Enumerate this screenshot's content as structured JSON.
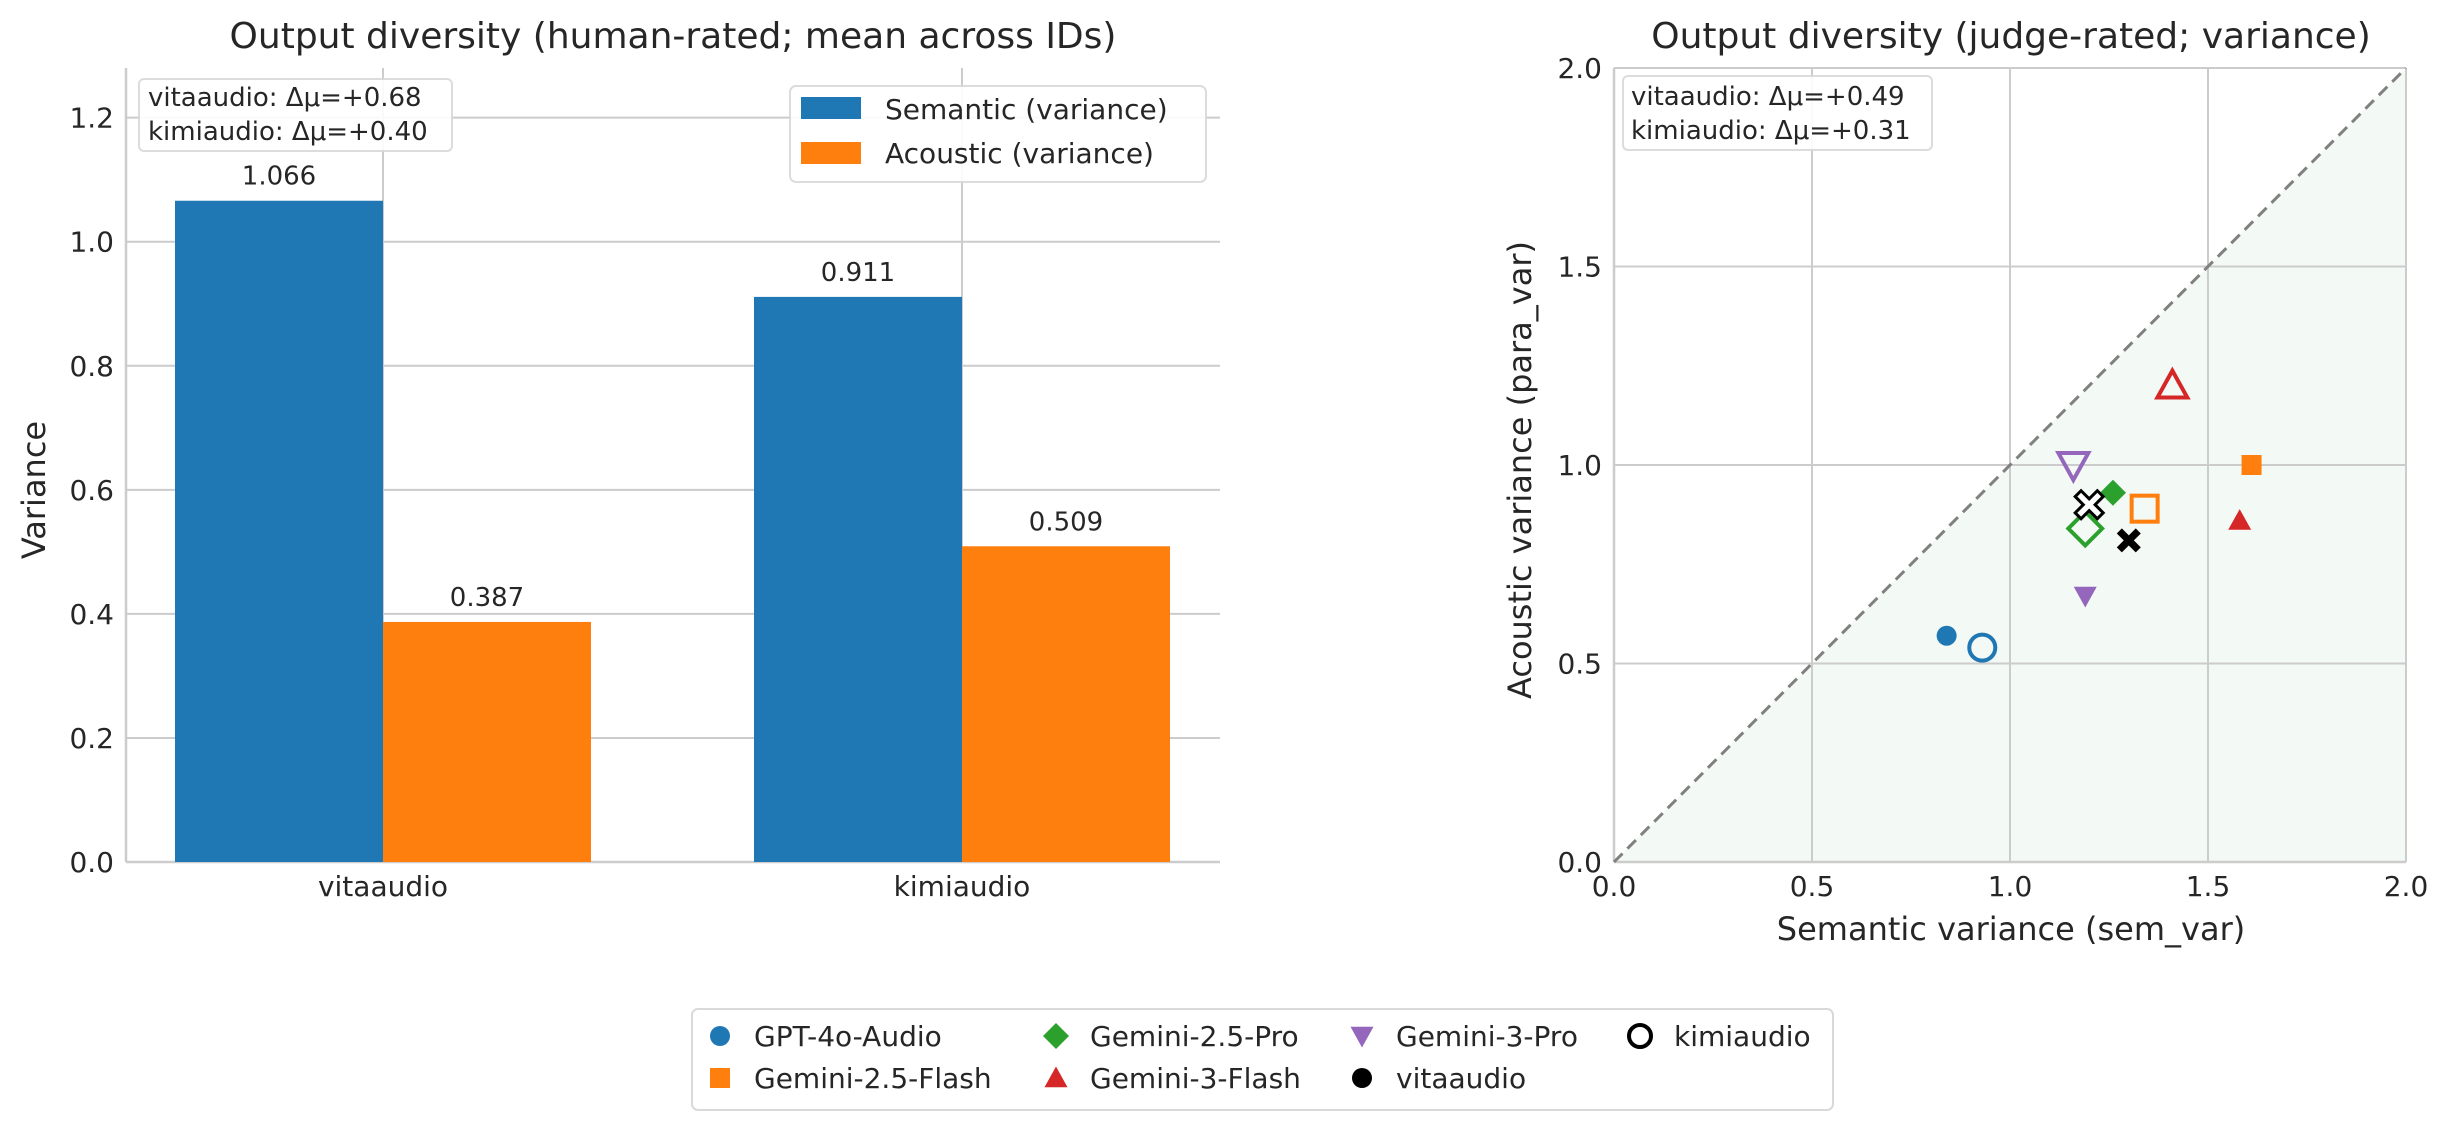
{
  "colors": {
    "semantic": "#1f77b4",
    "acoustic": "#ff7f0e",
    "GPT-4o-Audio": "#1f77b4",
    "Gemini-2.5-Flash": "#ff7f0e",
    "Gemini-2.5-Pro": "#2ca02c",
    "Gemini-3-Flash": "#d62728",
    "Gemini-3-Pro": "#9467bd",
    "black": "#000000",
    "grid": "#cccccc",
    "shade": "#f3f9f4"
  },
  "chart_data": [
    {
      "type": "bar",
      "title": "Output diversity (human-rated; mean across IDs)",
      "xlabel": "",
      "ylabel": "Variance",
      "ylim": [
        0,
        1.28
      ],
      "yticks": [
        "0.0",
        "0.2",
        "0.4",
        "0.6",
        "0.8",
        "1.0",
        "1.2"
      ],
      "categories": [
        "vitaaudio",
        "kimiaudio"
      ],
      "series": [
        {
          "name": "Semantic (variance)",
          "values": [
            1.066,
            0.911
          ],
          "labels": [
            "1.066",
            "0.911"
          ]
        },
        {
          "name": "Acoustic (variance)",
          "values": [
            0.387,
            0.509
          ],
          "labels": [
            "0.387",
            "0.509"
          ]
        }
      ],
      "annotation": [
        "vitaaudio: Δμ=+0.68",
        "kimiaudio: Δμ=+0.40"
      ],
      "grid": true,
      "legend_position": "top-right"
    },
    {
      "type": "scatter",
      "title": "Output diversity (judge-rated; variance)",
      "xlabel": "Semantic variance (sem_var)",
      "ylabel": "Acoustic variance (para_var)",
      "xlim": [
        0,
        2.0
      ],
      "ylim": [
        0,
        2.0
      ],
      "xticks": [
        "0.0",
        "0.5",
        "1.0",
        "1.5",
        "2.0"
      ],
      "yticks": [
        "0.0",
        "0.5",
        "1.0",
        "1.5",
        "2.0"
      ],
      "diagonal": "y = x (dashed), region below shaded",
      "grid": true,
      "annotation": [
        "vitaaudio: Δμ=+0.49",
        "kimiaudio: Δμ=+0.31"
      ],
      "points": [
        {
          "model": "GPT-4o-Audio",
          "system": "vitaaudio",
          "x": 0.84,
          "y": 0.57
        },
        {
          "model": "GPT-4o-Audio",
          "system": "kimiaudio",
          "x": 0.93,
          "y": 0.54
        },
        {
          "model": "Gemini-2.5-Flash",
          "system": "vitaaudio",
          "x": 1.61,
          "y": 1.0
        },
        {
          "model": "Gemini-2.5-Flash",
          "system": "kimiaudio",
          "x": 1.34,
          "y": 0.89
        },
        {
          "model": "Gemini-2.5-Pro",
          "system": "vitaaudio",
          "x": 1.26,
          "y": 0.93
        },
        {
          "model": "Gemini-2.5-Pro",
          "system": "kimiaudio",
          "x": 1.19,
          "y": 0.84
        },
        {
          "model": "Gemini-3-Flash",
          "system": "vitaaudio",
          "x": 1.58,
          "y": 0.86
        },
        {
          "model": "Gemini-3-Flash",
          "system": "kimiaudio",
          "x": 1.41,
          "y": 1.2
        },
        {
          "model": "Gemini-3-Pro",
          "system": "vitaaudio",
          "x": 1.19,
          "y": 0.67
        },
        {
          "model": "Gemini-3-Pro",
          "system": "kimiaudio",
          "x": 1.16,
          "y": 1.0
        },
        {
          "model": "mean",
          "system": "vitaaudio",
          "x": 1.3,
          "y": 0.81
        },
        {
          "model": "mean",
          "system": "kimiaudio",
          "x": 1.2,
          "y": 0.9
        }
      ]
    }
  ],
  "legend": [
    {
      "label": "GPT-4o-Audio",
      "marker": "circle-filled",
      "color": "#1f77b4"
    },
    {
      "label": "Gemini-2.5-Flash",
      "marker": "square-filled",
      "color": "#ff7f0e"
    },
    {
      "label": "Gemini-2.5-Pro",
      "marker": "diamond-filled",
      "color": "#2ca02c"
    },
    {
      "label": "Gemini-3-Flash",
      "marker": "triangle-up-filled",
      "color": "#d62728"
    },
    {
      "label": "Gemini-3-Pro",
      "marker": "triangle-down-filled",
      "color": "#9467bd"
    },
    {
      "label": "vitaaudio",
      "marker": "circle-filled",
      "color": "#000000"
    },
    {
      "label": "kimiaudio",
      "marker": "circle-open",
      "color": "#000000"
    }
  ]
}
